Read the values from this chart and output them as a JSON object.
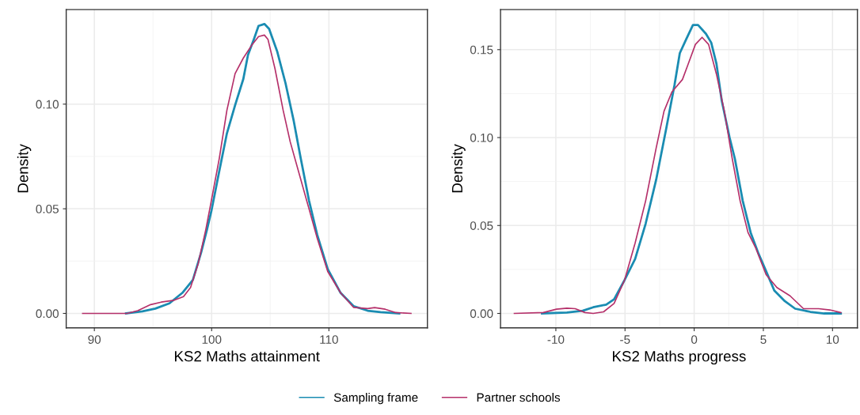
{
  "chart_data": [
    {
      "type": "line",
      "xlabel": "KS2 Maths attainment",
      "ylabel": "Density",
      "xlim": [
        87.6,
        118.4
      ],
      "ylim": [
        -0.0069,
        0.1452
      ],
      "xticks": [
        90,
        100,
        110
      ],
      "yticks": [
        {
          "value": 0,
          "label": "0.00"
        },
        {
          "value": 0.05,
          "label": "0.05"
        },
        {
          "value": 0.1,
          "label": "0.10"
        }
      ],
      "grid": true,
      "legend": "bottom",
      "series": [
        {
          "name": "Sampling frame",
          "color": "#1a8cb2",
          "x": [
            92.7,
            94.1,
            95.2,
            96.4,
            97.5,
            98.4,
            99.1,
            99.6,
            99.98,
            100.65,
            101.3,
            102.0,
            102.7,
            103.1,
            103.6,
            104.0,
            104.5,
            104.9,
            105.6,
            106.3,
            107.0,
            107.6,
            108.3,
            109.0,
            109.9,
            111.0,
            112.1,
            113.3,
            114.4,
            116.0
          ],
          "values": [
            0,
            0.001,
            0.0023,
            0.0048,
            0.0098,
            0.016,
            0.029,
            0.04,
            0.049,
            0.068,
            0.086,
            0.0995,
            0.112,
            0.1235,
            0.131,
            0.1374,
            0.1383,
            0.136,
            0.125,
            0.11,
            0.092,
            0.074,
            0.054,
            0.0376,
            0.0212,
            0.0098,
            0.0035,
            0.0013,
            0.0006,
            0
          ]
        },
        {
          "name": "Partner schools",
          "color": "#b5306a",
          "x": [
            89.0,
            92.8,
            93.7,
            94.8,
            95.7,
            96.8,
            97.6,
            98.2,
            98.85,
            99.5,
            99.98,
            100.65,
            101.3,
            102.0,
            102.7,
            103.4,
            104.0,
            104.5,
            104.8,
            105.4,
            106.1,
            106.7,
            107.6,
            108.3,
            109.0,
            109.9,
            111.0,
            112.1,
            113.3,
            113.9,
            114.8,
            115.7,
            117.0
          ],
          "values": [
            0,
            0,
            0.0013,
            0.0042,
            0.0054,
            0.0063,
            0.008,
            0.0124,
            0.0237,
            0.04,
            0.054,
            0.074,
            0.097,
            0.1146,
            0.122,
            0.128,
            0.1323,
            0.133,
            0.131,
            0.117,
            0.097,
            0.082,
            0.064,
            0.05,
            0.036,
            0.02,
            0.0098,
            0.0029,
            0.0023,
            0.0028,
            0.002,
            0.0004,
            0
          ]
        }
      ]
    },
    {
      "type": "line",
      "xlabel": "KS2 Maths progress",
      "ylabel": "Density",
      "xlim": [
        -14.0,
        11.8
      ],
      "ylim": [
        -0.0082,
        0.1728
      ],
      "xticks": [
        {
          "value": -10,
          "label": "-10"
        },
        {
          "value": -5,
          "label": "-5"
        },
        0,
        5,
        10
      ],
      "yticks": [
        {
          "value": 0,
          "label": "0.00"
        },
        {
          "value": 0.05,
          "label": "0.05"
        },
        {
          "value": 0.1,
          "label": "0.10"
        },
        {
          "value": 0.15,
          "label": "0.15"
        }
      ],
      "grid": true,
      "series": [
        {
          "color": "#1a8cb2",
          "x": [
            -11.0,
            -9.2,
            -8.06,
            -7.3,
            -6.36,
            -5.79,
            -5.03,
            -4.27,
            -3.51,
            -2.75,
            -2.0,
            -1.42,
            -1.04,
            -0.57,
            -0.09,
            0.28,
            0.85,
            1.23,
            1.61,
            1.99,
            2.56,
            2.94,
            3.51,
            4.08,
            4.65,
            5.2,
            5.79,
            6.55,
            7.3,
            8.4,
            9.4,
            10.6
          ],
          "values": [
            0,
            0.0005,
            0.0015,
            0.0035,
            0.005,
            0.008,
            0.019,
            0.031,
            0.051,
            0.076,
            0.106,
            0.13,
            0.148,
            0.156,
            0.164,
            0.164,
            0.159,
            0.154,
            0.142,
            0.121,
            0.1,
            0.088,
            0.064,
            0.046,
            0.034,
            0.024,
            0.013,
            0.007,
            0.0027,
            0.0009,
            0,
            0
          ]
        },
        {
          "color": "#b5306a",
          "x": [
            -13.0,
            -10.9,
            -9.96,
            -9.2,
            -8.6,
            -7.9,
            -7.3,
            -6.55,
            -5.79,
            -5.03,
            -4.27,
            -3.51,
            -2.75,
            -2.18,
            -1.61,
            -0.85,
            -0.47,
            0.09,
            0.57,
            1.04,
            1.61,
            2.18,
            2.75,
            3.32,
            3.89,
            4.46,
            5.2,
            5.98,
            6.93,
            7.9,
            9.0,
            9.8,
            10.6
          ],
          "values": [
            0,
            0.0005,
            0.0024,
            0.003,
            0.0027,
            0.0005,
            0,
            0.0009,
            0.0057,
            0.019,
            0.04,
            0.064,
            0.094,
            0.115,
            0.126,
            0.133,
            0.141,
            0.153,
            0.157,
            0.153,
            0.136,
            0.115,
            0.088,
            0.064,
            0.046,
            0.037,
            0.022,
            0.0147,
            0.01,
            0.0027,
            0.0027,
            0.002,
            0.0005
          ]
        }
      ]
    }
  ]
}
